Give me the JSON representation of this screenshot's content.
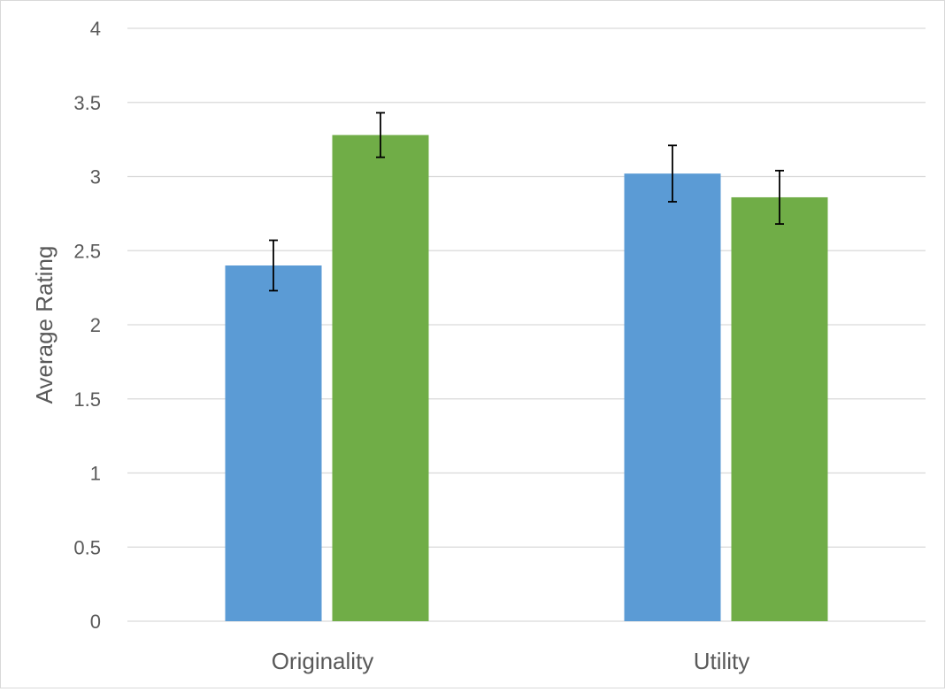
{
  "chart_data": {
    "type": "bar",
    "title": "",
    "xlabel": "",
    "ylabel": "Average Rating",
    "categories": [
      "Originality",
      "Utility"
    ],
    "series": [
      {
        "color": "#5b9bd5",
        "values": [
          2.4,
          3.02
        ],
        "error": [
          0.17,
          0.19
        ]
      },
      {
        "color": "#70ad47",
        "values": [
          3.28,
          2.86
        ],
        "error": [
          0.15,
          0.18
        ]
      }
    ],
    "ylim": [
      0,
      4
    ],
    "yticks": [
      0,
      0.5,
      1,
      1.5,
      2,
      2.5,
      3,
      3.5,
      4
    ],
    "ytick_labels": [
      "0",
      "0.5",
      "1",
      "1.5",
      "2",
      "2.5",
      "3",
      "3.5",
      "4"
    ],
    "grid": true,
    "legend": "none"
  }
}
